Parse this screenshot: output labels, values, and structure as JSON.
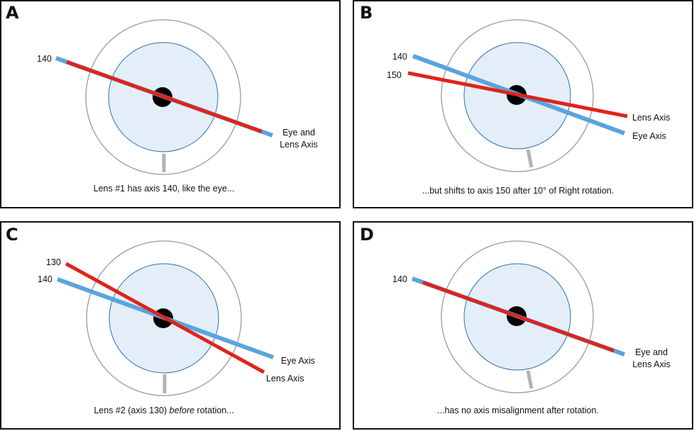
{
  "colors": {
    "eye_axis": "#5aa4dc",
    "lens_axis": "#e0231b",
    "iris_fill": "#e3eef8",
    "iris_stroke": "#2f6eb0",
    "limbus": "#9a9a9a",
    "marker": "#b3b3b3"
  },
  "panels": [
    {
      "letter": "A",
      "labels": [
        "140"
      ],
      "axis_label_1": "Eye and",
      "axis_label_2": "Lens Axis",
      "caption": "Lens #1 has axis 140, like the eye..."
    },
    {
      "letter": "B",
      "labels": [
        "140",
        "150"
      ],
      "lens_label": "Lens Axis",
      "eye_label": "Eye Axis",
      "caption": "...but shifts to axis 150 after 10° of Right rotation."
    },
    {
      "letter": "C",
      "labels": [
        "130",
        "140"
      ],
      "eye_label": "Eye Axis",
      "lens_label": "Lens Axis",
      "caption_pre": "Lens #2 (axis 130) ",
      "caption_italic": "before",
      "caption_post": " rotation..."
    },
    {
      "letter": "D",
      "labels": [
        "140"
      ],
      "axis_label_1": "Eye and",
      "axis_label_2": "Lens Axis",
      "caption": "...has no axis misalignment after rotation."
    }
  ]
}
